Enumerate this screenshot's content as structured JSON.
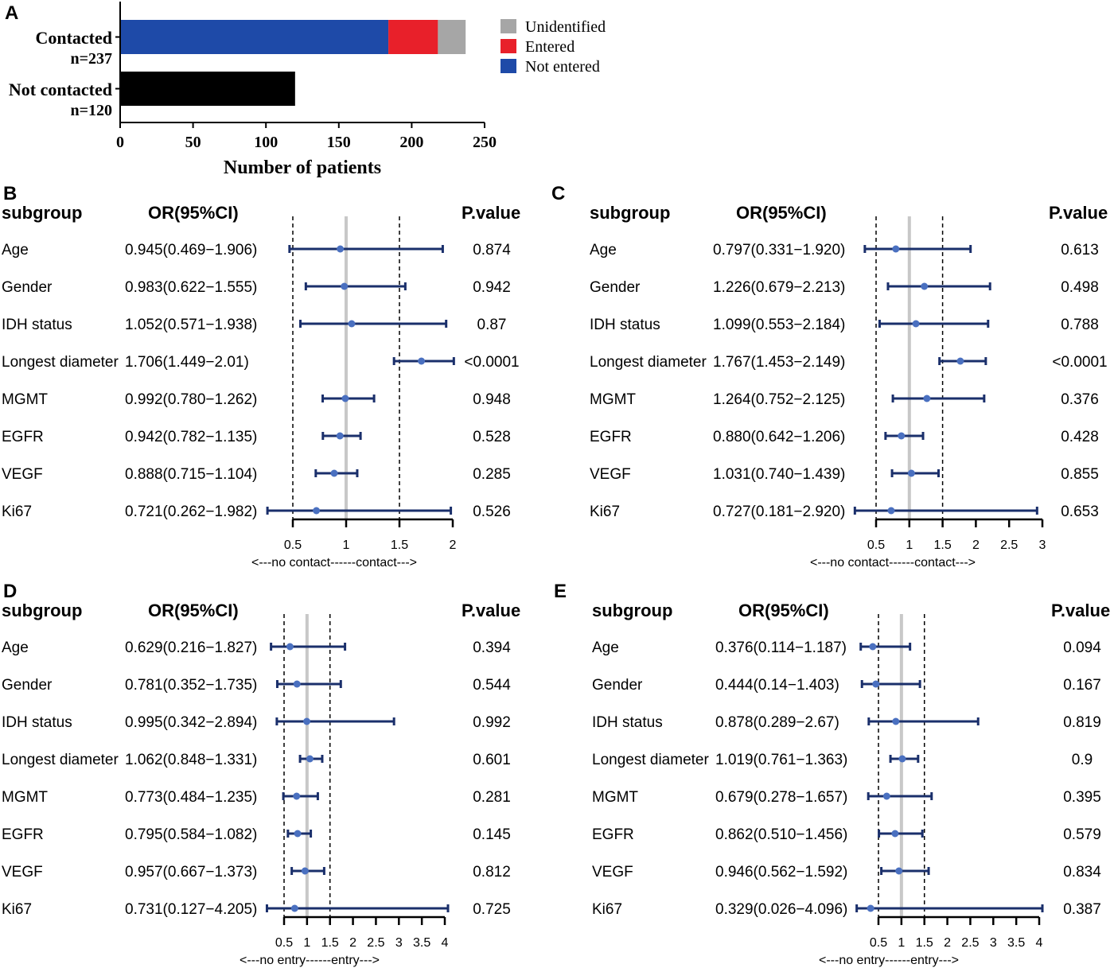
{
  "colors": {
    "not_entered": "#1e4aa8",
    "entered": "#e8202a",
    "unidentified": "#a6a6a6",
    "not_contacted": "#000000",
    "ci_line": "#1a2f6b",
    "point": "#4a70c0",
    "ref_line": "#c8c8c8"
  },
  "chart_data": [
    {
      "panel": "A",
      "type": "bar",
      "orientation": "horizontal",
      "stacked": true,
      "categories": [
        "Contacted",
        "Not contacted"
      ],
      "category_n": [
        "n=237",
        "n=120"
      ],
      "series": [
        {
          "name": "Not entered",
          "color_key": "not_entered",
          "values": [
            184,
            0
          ]
        },
        {
          "name": "Entered",
          "color_key": "entered",
          "values": [
            34,
            0
          ]
        },
        {
          "name": "Unidentified",
          "color_key": "unidentified",
          "values": [
            19,
            0
          ]
        },
        {
          "name": "Not contacted",
          "color_key": "not_contacted",
          "values": [
            0,
            120
          ]
        }
      ],
      "legend": [
        "Unidentified",
        "Entered",
        "Not entered"
      ],
      "legend_placement": "top-right",
      "xlabel": "Number of patients",
      "xlim": [
        0,
        250
      ],
      "xticks": [
        "0",
        "50",
        "100",
        "150",
        "200",
        "250"
      ]
    },
    {
      "panel": "B",
      "type": "forest",
      "headers": {
        "subgroup": "subgroup",
        "or": "OR(95%CI)",
        "p": "P.value"
      },
      "xlim": [
        0.5,
        2
      ],
      "xticks": [
        "0.5",
        "1",
        "1.5",
        "2"
      ],
      "axis_caption": "<---no contact------contact--->",
      "rows": [
        {
          "label": "Age",
          "or_text": "0.945(0.469−1.906)",
          "p": "0.874",
          "or": 0.945,
          "lo": 0.469,
          "hi": 1.906
        },
        {
          "label": "Gender",
          "or_text": "0.983(0.622−1.555)",
          "p": "0.942",
          "or": 0.983,
          "lo": 0.622,
          "hi": 1.555
        },
        {
          "label": "IDH status",
          "or_text": "1.052(0.571−1.938)",
          "p": "0.87",
          "or": 1.052,
          "lo": 0.571,
          "hi": 1.938
        },
        {
          "label": "Longest diameter",
          "or_text": "1.706(1.449−2.01)",
          "p": "<0.0001",
          "or": 1.706,
          "lo": 1.449,
          "hi": 2.01
        },
        {
          "label": "MGMT",
          "or_text": "0.992(0.780−1.262)",
          "p": "0.948",
          "or": 0.992,
          "lo": 0.78,
          "hi": 1.262
        },
        {
          "label": "EGFR",
          "or_text": "0.942(0.782−1.135)",
          "p": "0.528",
          "or": 0.942,
          "lo": 0.782,
          "hi": 1.135
        },
        {
          "label": "VEGF",
          "or_text": "0.888(0.715−1.104)",
          "p": "0.285",
          "or": 0.888,
          "lo": 0.715,
          "hi": 1.104
        },
        {
          "label": "Ki67",
          "or_text": "0.721(0.262−1.982)",
          "p": "0.526",
          "or": 0.721,
          "lo": 0.262,
          "hi": 1.982
        }
      ]
    },
    {
      "panel": "C",
      "type": "forest",
      "headers": {
        "subgroup": "subgroup",
        "or": "OR(95%CI)",
        "p": "P.value"
      },
      "xlim": [
        0.5,
        3
      ],
      "xticks": [
        "0.5",
        "1",
        "1.5",
        "2",
        "2.5",
        "3"
      ],
      "axis_caption": "<---no contact------contact--->",
      "rows": [
        {
          "label": "Age",
          "or_text": "0.797(0.331−1.920)",
          "p": "0.613",
          "or": 0.797,
          "lo": 0.331,
          "hi": 1.92
        },
        {
          "label": "Gender",
          "or_text": "1.226(0.679−2.213)",
          "p": "0.498",
          "or": 1.226,
          "lo": 0.679,
          "hi": 2.213
        },
        {
          "label": "IDH status",
          "or_text": "1.099(0.553−2.184)",
          "p": "0.788",
          "or": 1.099,
          "lo": 0.553,
          "hi": 2.184
        },
        {
          "label": "Longest diameter",
          "or_text": "1.767(1.453−2.149)",
          "p": "<0.0001",
          "or": 1.767,
          "lo": 1.453,
          "hi": 2.149
        },
        {
          "label": "MGMT",
          "or_text": "1.264(0.752−2.125)",
          "p": "0.376",
          "or": 1.264,
          "lo": 0.752,
          "hi": 2.125
        },
        {
          "label": "EGFR",
          "or_text": "0.880(0.642−1.206)",
          "p": "0.428",
          "or": 0.88,
          "lo": 0.642,
          "hi": 1.206
        },
        {
          "label": "VEGF",
          "or_text": "1.031(0.740−1.439)",
          "p": "0.855",
          "or": 1.031,
          "lo": 0.74,
          "hi": 1.439
        },
        {
          "label": "Ki67",
          "or_text": "0.727(0.181−2.920)",
          "p": "0.653",
          "or": 0.727,
          "lo": 0.181,
          "hi": 2.92
        }
      ]
    },
    {
      "panel": "D",
      "type": "forest",
      "headers": {
        "subgroup": "subgroup",
        "or": "OR(95%CI)",
        "p": "P.value"
      },
      "xlim": [
        0.5,
        4
      ],
      "xticks": [
        "0.5",
        "1",
        "1.5",
        "2",
        "2.5",
        "3",
        "3.5",
        "4"
      ],
      "axis_caption": "<---no entry------entry--->",
      "rows": [
        {
          "label": "Age",
          "or_text": "0.629(0.216−1.827)",
          "p": "0.394",
          "or": 0.629,
          "lo": 0.216,
          "hi": 1.827
        },
        {
          "label": "Gender",
          "or_text": "0.781(0.352−1.735)",
          "p": "0.544",
          "or": 0.781,
          "lo": 0.352,
          "hi": 1.735
        },
        {
          "label": "IDH status",
          "or_text": "0.995(0.342−2.894)",
          "p": "0.992",
          "or": 0.995,
          "lo": 0.342,
          "hi": 2.894
        },
        {
          "label": "Longest diameter",
          "or_text": "1.062(0.848−1.331)",
          "p": "0.601",
          "or": 1.062,
          "lo": 0.848,
          "hi": 1.331
        },
        {
          "label": "MGMT",
          "or_text": "0.773(0.484−1.235)",
          "p": "0.281",
          "or": 0.773,
          "lo": 0.484,
          "hi": 1.235
        },
        {
          "label": "EGFR",
          "or_text": "0.795(0.584−1.082)",
          "p": "0.145",
          "or": 0.795,
          "lo": 0.584,
          "hi": 1.082
        },
        {
          "label": "VEGF",
          "or_text": "0.957(0.667−1.373)",
          "p": "0.812",
          "or": 0.957,
          "lo": 0.667,
          "hi": 1.373
        },
        {
          "label": "Ki67",
          "or_text": "0.731(0.127−4.205)",
          "p": "0.725",
          "or": 0.731,
          "lo": 0.127,
          "hi": 4.205
        }
      ]
    },
    {
      "panel": "E",
      "type": "forest",
      "headers": {
        "subgroup": "subgroup",
        "or": "OR(95%CI)",
        "p": "P.value"
      },
      "xlim": [
        0.5,
        4
      ],
      "xticks": [
        "0.5",
        "1",
        "1.5",
        "2",
        "2.5",
        "3",
        "3.5",
        "4"
      ],
      "axis_caption": "<---no entry------entry--->",
      "rows": [
        {
          "label": "Age",
          "or_text": "0.376(0.114−1.187)",
          "p": "0.094",
          "or": 0.376,
          "lo": 0.114,
          "hi": 1.187
        },
        {
          "label": "Gender",
          "or_text": "0.444(0.14−1.403)",
          "p": "0.167",
          "or": 0.444,
          "lo": 0.14,
          "hi": 1.403
        },
        {
          "label": "IDH status",
          "or_text": "0.878(0.289−2.67)",
          "p": "0.819",
          "or": 0.878,
          "lo": 0.289,
          "hi": 2.67
        },
        {
          "label": "Longest diameter",
          "or_text": "1.019(0.761−1.363)",
          "p": "0.9",
          "or": 1.019,
          "lo": 0.761,
          "hi": 1.363
        },
        {
          "label": "MGMT",
          "or_text": "0.679(0.278−1.657)",
          "p": "0.395",
          "or": 0.679,
          "lo": 0.278,
          "hi": 1.657
        },
        {
          "label": "EGFR",
          "or_text": "0.862(0.510−1.456)",
          "p": "0.579",
          "or": 0.862,
          "lo": 0.51,
          "hi": 1.456
        },
        {
          "label": "VEGF",
          "or_text": "0.946(0.562−1.592)",
          "p": "0.834",
          "or": 0.946,
          "lo": 0.562,
          "hi": 1.592
        },
        {
          "label": "Ki67",
          "or_text": "0.329(0.026−4.096)",
          "p": "0.387",
          "or": 0.329,
          "lo": 0.026,
          "hi": 4.096
        }
      ]
    }
  ]
}
